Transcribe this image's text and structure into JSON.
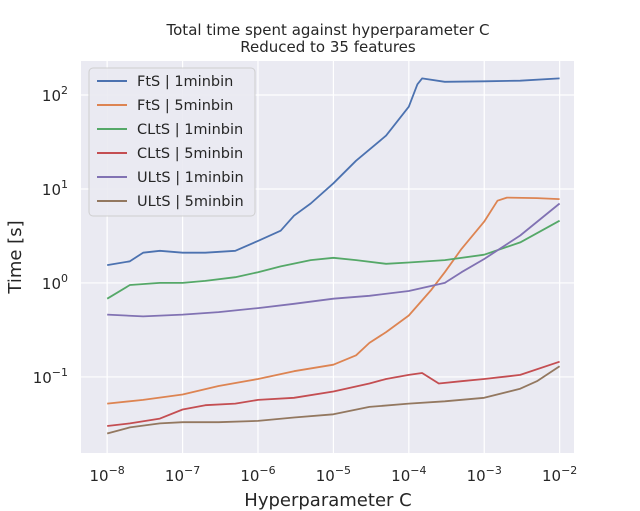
{
  "chart_data": {
    "type": "line",
    "title": "Total time spent against hyperparameter C",
    "subtitle": "Reduced to 35 features",
    "xlabel": "Hyperparameter C",
    "ylabel": "Time [s]",
    "xscale": "log",
    "yscale": "log",
    "xlim": [
      4.5e-09,
      0.0155
    ],
    "ylim": [
      0.0155,
      230
    ],
    "grid": true,
    "legend_position": "top-left",
    "xticks": [
      {
        "value": 1e-08,
        "base": "10",
        "exp": "−8"
      },
      {
        "value": 1e-07,
        "base": "10",
        "exp": "−7"
      },
      {
        "value": 1e-06,
        "base": "10",
        "exp": "−6"
      },
      {
        "value": 1e-05,
        "base": "10",
        "exp": "−5"
      },
      {
        "value": 0.0001,
        "base": "10",
        "exp": "−4"
      },
      {
        "value": 0.001,
        "base": "10",
        "exp": "−3"
      },
      {
        "value": 0.01,
        "base": "10",
        "exp": "−2"
      }
    ],
    "yticks": [
      {
        "value": 0.1,
        "base": "10",
        "exp": "−1"
      },
      {
        "value": 1,
        "base": "10",
        "exp": "0"
      },
      {
        "value": 10,
        "base": "10",
        "exp": "1"
      },
      {
        "value": 100,
        "base": "10",
        "exp": "2"
      }
    ],
    "series": [
      {
        "name": "FtS | 1minbin",
        "color": "#4c72b0",
        "points": [
          [
            1e-08,
            1.55
          ],
          [
            2e-08,
            1.7
          ],
          [
            3e-08,
            2.1
          ],
          [
            5e-08,
            2.2
          ],
          [
            1e-07,
            2.1
          ],
          [
            2e-07,
            2.1
          ],
          [
            5e-07,
            2.2
          ],
          [
            1e-06,
            2.8
          ],
          [
            2e-06,
            3.6
          ],
          [
            3e-06,
            5.2
          ],
          [
            5e-06,
            7.0
          ],
          [
            1e-05,
            11.5
          ],
          [
            2e-05,
            20
          ],
          [
            5e-05,
            37
          ],
          [
            0.0001,
            75
          ],
          [
            0.00013,
            130
          ],
          [
            0.00015,
            150
          ],
          [
            0.0003,
            138
          ],
          [
            0.001,
            140
          ],
          [
            0.003,
            142
          ],
          [
            0.01,
            150
          ]
        ]
      },
      {
        "name": "FtS | 5minbin",
        "color": "#dd8452",
        "points": [
          [
            1e-08,
            0.052
          ],
          [
            3e-08,
            0.057
          ],
          [
            1e-07,
            0.065
          ],
          [
            3e-07,
            0.08
          ],
          [
            1e-06,
            0.095
          ],
          [
            3e-06,
            0.115
          ],
          [
            1e-05,
            0.135
          ],
          [
            2e-05,
            0.17
          ],
          [
            3e-05,
            0.23
          ],
          [
            5e-05,
            0.3
          ],
          [
            0.0001,
            0.45
          ],
          [
            0.0002,
            0.85
          ],
          [
            0.0003,
            1.3
          ],
          [
            0.0005,
            2.3
          ],
          [
            0.001,
            4.5
          ],
          [
            0.0015,
            7.5
          ],
          [
            0.002,
            8.1
          ],
          [
            0.005,
            8.0
          ],
          [
            0.01,
            7.8
          ]
        ]
      },
      {
        "name": "CLtS | 1minbin",
        "color": "#55a868",
        "points": [
          [
            1e-08,
            0.68
          ],
          [
            2e-08,
            0.95
          ],
          [
            5e-08,
            1.0
          ],
          [
            1e-07,
            1.0
          ],
          [
            2e-07,
            1.05
          ],
          [
            5e-07,
            1.15
          ],
          [
            1e-06,
            1.3
          ],
          [
            2e-06,
            1.5
          ],
          [
            5e-06,
            1.75
          ],
          [
            1e-05,
            1.85
          ],
          [
            2e-05,
            1.75
          ],
          [
            5e-05,
            1.6
          ],
          [
            0.0001,
            1.65
          ],
          [
            0.0003,
            1.75
          ],
          [
            0.001,
            2.0
          ],
          [
            0.003,
            2.7
          ],
          [
            0.01,
            4.6
          ]
        ]
      },
      {
        "name": "CLtS | 5minbin",
        "color": "#c44e52",
        "points": [
          [
            1e-08,
            0.03
          ],
          [
            2e-08,
            0.032
          ],
          [
            5e-08,
            0.036
          ],
          [
            1e-07,
            0.045
          ],
          [
            2e-07,
            0.05
          ],
          [
            5e-07,
            0.052
          ],
          [
            1e-06,
            0.057
          ],
          [
            3e-06,
            0.06
          ],
          [
            1e-05,
            0.07
          ],
          [
            3e-05,
            0.085
          ],
          [
            5e-05,
            0.095
          ],
          [
            0.0001,
            0.105
          ],
          [
            0.00015,
            0.11
          ],
          [
            0.00025,
            0.085
          ],
          [
            0.0005,
            0.09
          ],
          [
            0.001,
            0.095
          ],
          [
            0.003,
            0.105
          ],
          [
            0.01,
            0.145
          ]
        ]
      },
      {
        "name": "ULtS | 1minbin",
        "color": "#8172b3",
        "points": [
          [
            1e-08,
            0.46
          ],
          [
            3e-08,
            0.44
          ],
          [
            1e-07,
            0.46
          ],
          [
            3e-07,
            0.49
          ],
          [
            1e-06,
            0.54
          ],
          [
            3e-06,
            0.6
          ],
          [
            1e-05,
            0.68
          ],
          [
            3e-05,
            0.73
          ],
          [
            0.0001,
            0.82
          ],
          [
            0.0003,
            1.0
          ],
          [
            0.0005,
            1.3
          ],
          [
            0.001,
            1.8
          ],
          [
            0.003,
            3.2
          ],
          [
            0.01,
            7.0
          ]
        ]
      },
      {
        "name": "ULtS | 5minbin",
        "color": "#937860",
        "points": [
          [
            1e-08,
            0.025
          ],
          [
            2e-08,
            0.029
          ],
          [
            5e-08,
            0.032
          ],
          [
            1e-07,
            0.033
          ],
          [
            3e-07,
            0.033
          ],
          [
            1e-06,
            0.034
          ],
          [
            3e-06,
            0.037
          ],
          [
            1e-05,
            0.04
          ],
          [
            3e-05,
            0.048
          ],
          [
            0.0001,
            0.052
          ],
          [
            0.0003,
            0.055
          ],
          [
            0.001,
            0.06
          ],
          [
            0.003,
            0.075
          ],
          [
            0.005,
            0.09
          ],
          [
            0.01,
            0.13
          ]
        ]
      }
    ]
  }
}
